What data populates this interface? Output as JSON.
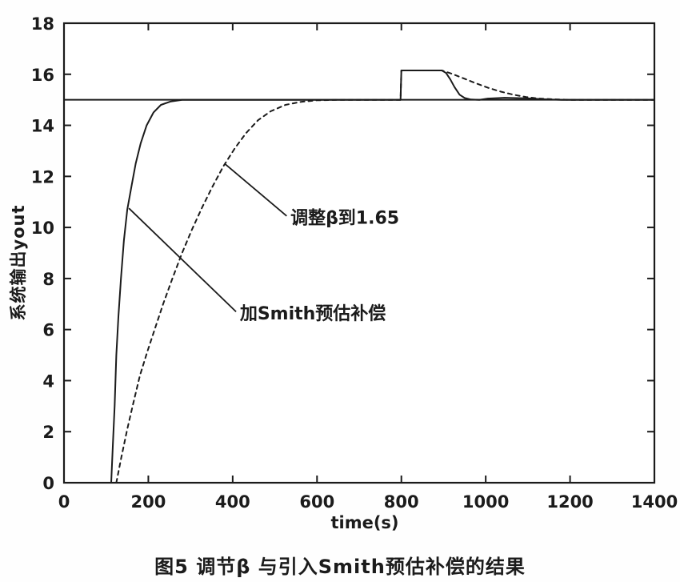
{
  "figure": {
    "caption": "图5 调节β 与引入Smith预估补偿的结果",
    "xlabel": "time(s)",
    "ylabel": "系统输出yout"
  },
  "colors": {
    "ink": "#1b1b1b",
    "background": "#fefefe",
    "plot_background": "#ffffff"
  },
  "chart_data": {
    "type": "line",
    "title": "",
    "xlabel": "time(s)",
    "ylabel": "系统输出yout",
    "xlim": [
      0,
      1400
    ],
    "ylim": [
      0,
      18
    ],
    "xticks": [
      0,
      200,
      400,
      600,
      800,
      1000,
      1200,
      1400
    ],
    "yticks": [
      0,
      2,
      4,
      6,
      8,
      10,
      12,
      14,
      16,
      18
    ],
    "grid": false,
    "legend_position": "none",
    "setpoint": 15,
    "disturbance_time": 800,
    "disturbance_peak": 16.15,
    "series": [
      {
        "name": "加Smith预估补偿",
        "style": "solid",
        "points": [
          [
            112,
            0
          ],
          [
            116,
            1.5
          ],
          [
            120,
            3.0
          ],
          [
            124,
            5.0
          ],
          [
            129,
            6.5
          ],
          [
            135,
            8.0
          ],
          [
            142,
            9.5
          ],
          [
            150,
            10.7
          ],
          [
            160,
            11.6
          ],
          [
            170,
            12.5
          ],
          [
            182,
            13.3
          ],
          [
            196,
            14.0
          ],
          [
            212,
            14.5
          ],
          [
            230,
            14.8
          ],
          [
            252,
            14.93
          ],
          [
            280,
            15
          ],
          [
            798,
            15
          ],
          [
            800,
            16.15
          ],
          [
            896,
            16.15
          ],
          [
            906,
            16.05
          ],
          [
            916,
            15.8
          ],
          [
            926,
            15.5
          ],
          [
            938,
            15.2
          ],
          [
            950,
            15.07
          ],
          [
            965,
            15.01
          ],
          [
            985,
            15.0
          ],
          [
            1005,
            15.05
          ],
          [
            1045,
            15.08
          ],
          [
            1095,
            15.06
          ],
          [
            1140,
            15.02
          ],
          [
            1180,
            15.0
          ],
          [
            1400,
            15.0
          ]
        ]
      },
      {
        "name": "调整β到1.65",
        "style": "dashed",
        "points": [
          [
            124,
            0
          ],
          [
            136,
            1.0
          ],
          [
            150,
            2.1
          ],
          [
            164,
            3.1
          ],
          [
            180,
            4.2
          ],
          [
            197,
            5.1
          ],
          [
            215,
            6.0
          ],
          [
            235,
            7.0
          ],
          [
            257,
            8.0
          ],
          [
            280,
            9.0
          ],
          [
            303,
            9.9
          ],
          [
            328,
            10.8
          ],
          [
            352,
            11.6
          ],
          [
            378,
            12.4
          ],
          [
            405,
            13.1
          ],
          [
            432,
            13.7
          ],
          [
            460,
            14.2
          ],
          [
            490,
            14.55
          ],
          [
            525,
            14.8
          ],
          [
            562,
            14.92
          ],
          [
            600,
            14.98
          ],
          [
            650,
            15
          ],
          [
            798,
            15
          ],
          [
            800,
            16.15
          ],
          [
            896,
            16.15
          ],
          [
            918,
            16.03
          ],
          [
            946,
            15.85
          ],
          [
            976,
            15.65
          ],
          [
            1006,
            15.47
          ],
          [
            1036,
            15.32
          ],
          [
            1066,
            15.2
          ],
          [
            1096,
            15.11
          ],
          [
            1126,
            15.05
          ],
          [
            1162,
            15.02
          ],
          [
            1200,
            15.0
          ],
          [
            1400,
            15.0
          ]
        ]
      }
    ],
    "annotations": [
      {
        "text": "调整β到1.65",
        "line_from": [
          381,
          12.5
        ],
        "line_to": [
          528,
          10.45
        ],
        "label_at": [
          537,
          10.4
        ]
      },
      {
        "text": "加Smith预估补偿",
        "line_from": [
          154,
          10.75
        ],
        "line_to": [
          408,
          6.7
        ],
        "label_at": [
          417,
          6.65
        ]
      }
    ]
  }
}
